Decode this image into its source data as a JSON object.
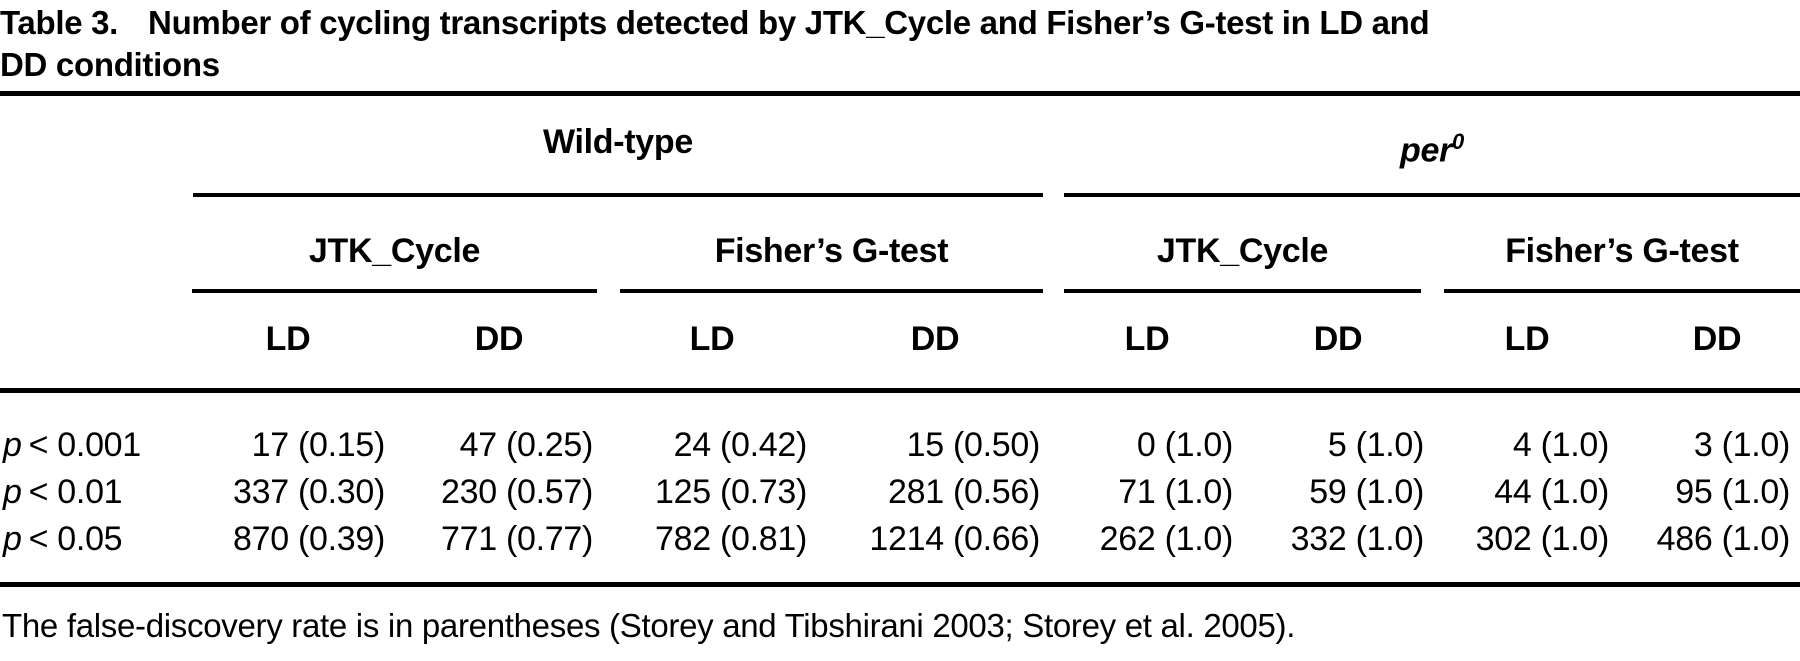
{
  "table": {
    "label": "Table 3.",
    "title_line1": "Number of cycling transcripts detected by JTK_Cycle and Fisher’s G-test in LD and",
    "title_line2": "DD conditions",
    "col_groups": [
      {
        "label": "Wild-type"
      },
      {
        "label": "per",
        "superscript": "0"
      }
    ],
    "method_headers": [
      "JTK_Cycle",
      "Fisher’s G-test",
      "JTK_Cycle",
      "Fisher’s G-test"
    ],
    "condition_headers": [
      "LD",
      "DD",
      "LD",
      "DD",
      "LD",
      "DD",
      "LD",
      "DD"
    ],
    "rows": [
      {
        "label_var": "p",
        "label_rest": "< 0.001",
        "cells": [
          "17 (0.15)",
          "47 (0.25)",
          "24 (0.42)",
          "15 (0.50)",
          "0 (1.0)",
          "5 (1.0)",
          "4 (1.0)",
          "3 (1.0)"
        ]
      },
      {
        "label_var": "p",
        "label_rest": "< 0.01",
        "cells": [
          "337 (0.30)",
          "230 (0.57)",
          "125 (0.73)",
          "281 (0.56)",
          "71 (1.0)",
          "59 (1.0)",
          "44 (1.0)",
          "95 (1.0)"
        ]
      },
      {
        "label_var": "p",
        "label_rest": "< 0.05",
        "cells": [
          "870 (0.39)",
          "771 (0.77)",
          "782 (0.81)",
          "1214 (0.66)",
          "262 (1.0)",
          "332 (1.0)",
          "302 (1.0)",
          "486 (1.0)"
        ]
      }
    ],
    "footnote": "The false-discovery rate is in parentheses (Storey and Tibshirani 2003; Storey et al. 2005)."
  }
}
